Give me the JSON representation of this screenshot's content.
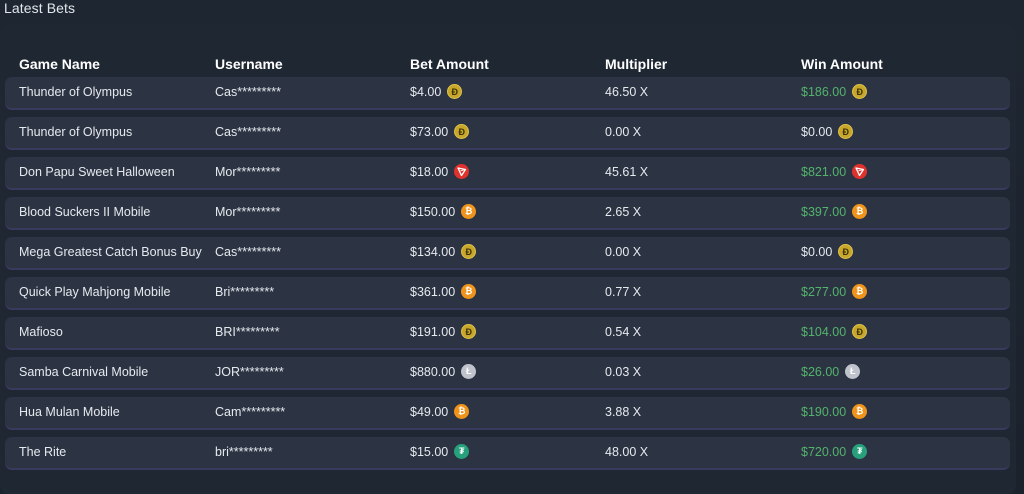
{
  "title": "Latest Bets",
  "columns": {
    "game": "Game Name",
    "user": "Username",
    "bet": "Bet Amount",
    "multiplier": "Multiplier",
    "win": "Win Amount"
  },
  "colors": {
    "positive_win": "#53b36b",
    "row_bg": "#2c3443",
    "panel_bg": "#1f2733"
  },
  "rows": [
    {
      "game": "Thunder of Olympus",
      "user": "Cas*********",
      "bet": "$4.00",
      "currency": "doge-icon",
      "multiplier": "46.50 X",
      "win": "$186.00",
      "win_positive": true
    },
    {
      "game": "Thunder of Olympus",
      "user": "Cas*********",
      "bet": "$73.00",
      "currency": "doge-icon",
      "multiplier": "0.00 X",
      "win": "$0.00",
      "win_positive": false
    },
    {
      "game": "Don Papu Sweet Halloween",
      "user": "Mor*********",
      "bet": "$18.00",
      "currency": "tron-icon",
      "multiplier": "45.61 X",
      "win": "$821.00",
      "win_positive": true
    },
    {
      "game": "Blood Suckers II Mobile",
      "user": "Mor*********",
      "bet": "$150.00",
      "currency": "bitcoin-icon",
      "multiplier": "2.65 X",
      "win": "$397.00",
      "win_positive": true
    },
    {
      "game": "Mega Greatest Catch Bonus Buy",
      "user": "Cas*********",
      "bet": "$134.00",
      "currency": "doge-icon",
      "multiplier": "0.00 X",
      "win": "$0.00",
      "win_positive": false
    },
    {
      "game": "Quick Play Mahjong Mobile",
      "user": "Bri*********",
      "bet": "$361.00",
      "currency": "bitcoin-icon",
      "multiplier": "0.77 X",
      "win": "$277.00",
      "win_positive": true
    },
    {
      "game": "Mafioso",
      "user": "BRI*********",
      "bet": "$191.00",
      "currency": "doge-icon",
      "multiplier": "0.54 X",
      "win": "$104.00",
      "win_positive": true
    },
    {
      "game": "Samba Carnival Mobile",
      "user": "JOR*********",
      "bet": "$880.00",
      "currency": "litecoin-icon",
      "multiplier": "0.03 X",
      "win": "$26.00",
      "win_positive": true
    },
    {
      "game": "Hua Mulan Mobile",
      "user": "Cam*********",
      "bet": "$49.00",
      "currency": "bitcoin-icon",
      "multiplier": "3.88 X",
      "win": "$190.00",
      "win_positive": true
    },
    {
      "game": "The Rite",
      "user": "bri*********",
      "bet": "$15.00",
      "currency": "tether-icon",
      "multiplier": "48.00 X",
      "win": "$720.00",
      "win_positive": true
    }
  ]
}
